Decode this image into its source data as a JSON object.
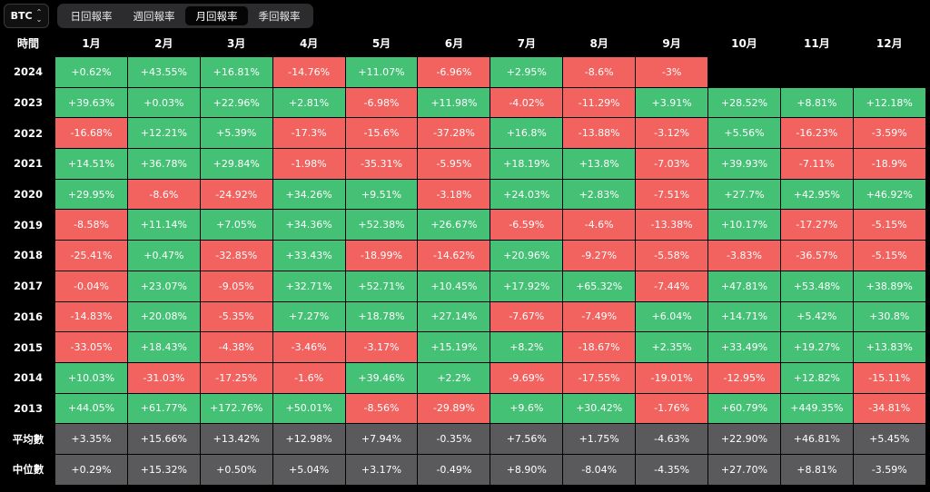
{
  "toolbar": {
    "coin": "BTC",
    "tabs": [
      "日回報率",
      "週回報率",
      "月回報率",
      "季回報率"
    ],
    "active_tab": 2
  },
  "table": {
    "corner_label": "時間",
    "months": [
      "1月",
      "2月",
      "3月",
      "4月",
      "5月",
      "6月",
      "7月",
      "8月",
      "9月",
      "10月",
      "11月",
      "12月"
    ],
    "rows": [
      {
        "label": "2024",
        "values": [
          "+0.62%",
          "+43.55%",
          "+16.81%",
          "-14.76%",
          "+11.07%",
          "-6.96%",
          "+2.95%",
          "-8.6%",
          "-3%",
          "",
          "",
          ""
        ]
      },
      {
        "label": "2023",
        "values": [
          "+39.63%",
          "+0.03%",
          "+22.96%",
          "+2.81%",
          "-6.98%",
          "+11.98%",
          "-4.02%",
          "-11.29%",
          "+3.91%",
          "+28.52%",
          "+8.81%",
          "+12.18%"
        ]
      },
      {
        "label": "2022",
        "values": [
          "-16.68%",
          "+12.21%",
          "+5.39%",
          "-17.3%",
          "-15.6%",
          "-37.28%",
          "+16.8%",
          "-13.88%",
          "-3.12%",
          "+5.56%",
          "-16.23%",
          "-3.59%"
        ]
      },
      {
        "label": "2021",
        "values": [
          "+14.51%",
          "+36.78%",
          "+29.84%",
          "-1.98%",
          "-35.31%",
          "-5.95%",
          "+18.19%",
          "+13.8%",
          "-7.03%",
          "+39.93%",
          "-7.11%",
          "-18.9%"
        ]
      },
      {
        "label": "2020",
        "values": [
          "+29.95%",
          "-8.6%",
          "-24.92%",
          "+34.26%",
          "+9.51%",
          "-3.18%",
          "+24.03%",
          "+2.83%",
          "-7.51%",
          "+27.7%",
          "+42.95%",
          "+46.92%"
        ]
      },
      {
        "label": "2019",
        "values": [
          "-8.58%",
          "+11.14%",
          "+7.05%",
          "+34.36%",
          "+52.38%",
          "+26.67%",
          "-6.59%",
          "-4.6%",
          "-13.38%",
          "+10.17%",
          "-17.27%",
          "-5.15%"
        ]
      },
      {
        "label": "2018",
        "values": [
          "-25.41%",
          "+0.47%",
          "-32.85%",
          "+33.43%",
          "-18.99%",
          "-14.62%",
          "+20.96%",
          "-9.27%",
          "-5.58%",
          "-3.83%",
          "-36.57%",
          "-5.15%"
        ]
      },
      {
        "label": "2017",
        "values": [
          "-0.04%",
          "+23.07%",
          "-9.05%",
          "+32.71%",
          "+52.71%",
          "+10.45%",
          "+17.92%",
          "+65.32%",
          "-7.44%",
          "+47.81%",
          "+53.48%",
          "+38.89%"
        ]
      },
      {
        "label": "2016",
        "values": [
          "-14.83%",
          "+20.08%",
          "-5.35%",
          "+7.27%",
          "+18.78%",
          "+27.14%",
          "-7.67%",
          "-7.49%",
          "+6.04%",
          "+14.71%",
          "+5.42%",
          "+30.8%"
        ]
      },
      {
        "label": "2015",
        "values": [
          "-33.05%",
          "+18.43%",
          "-4.38%",
          "-3.46%",
          "-3.17%",
          "+15.19%",
          "+8.2%",
          "-18.67%",
          "+2.35%",
          "+33.49%",
          "+19.27%",
          "+13.83%"
        ]
      },
      {
        "label": "2014",
        "values": [
          "+10.03%",
          "-31.03%",
          "-17.25%",
          "-1.6%",
          "+39.46%",
          "+2.2%",
          "-9.69%",
          "-17.55%",
          "-19.01%",
          "-12.95%",
          "+12.82%",
          "-15.11%"
        ]
      },
      {
        "label": "2013",
        "values": [
          "+44.05%",
          "+61.77%",
          "+172.76%",
          "+50.01%",
          "-8.56%",
          "-29.89%",
          "+9.6%",
          "+30.42%",
          "-1.76%",
          "+60.79%",
          "+449.35%",
          "-34.81%"
        ]
      }
    ],
    "summary_rows": [
      {
        "label": "平均數",
        "values": [
          "+3.35%",
          "+15.66%",
          "+13.42%",
          "+12.98%",
          "+7.94%",
          "-0.35%",
          "+7.56%",
          "+1.75%",
          "-4.63%",
          "+22.90%",
          "+46.81%",
          "+5.45%"
        ]
      },
      {
        "label": "中位數",
        "values": [
          "+0.29%",
          "+15.32%",
          "+0.50%",
          "+5.04%",
          "+3.17%",
          "-0.49%",
          "+8.90%",
          "-8.04%",
          "-4.35%",
          "+27.70%",
          "+8.81%",
          "-3.59%"
        ]
      }
    ]
  },
  "colors": {
    "positive": "#45c176",
    "negative": "#f2625f",
    "summary": "#5a5a5c",
    "background": "#000000"
  }
}
